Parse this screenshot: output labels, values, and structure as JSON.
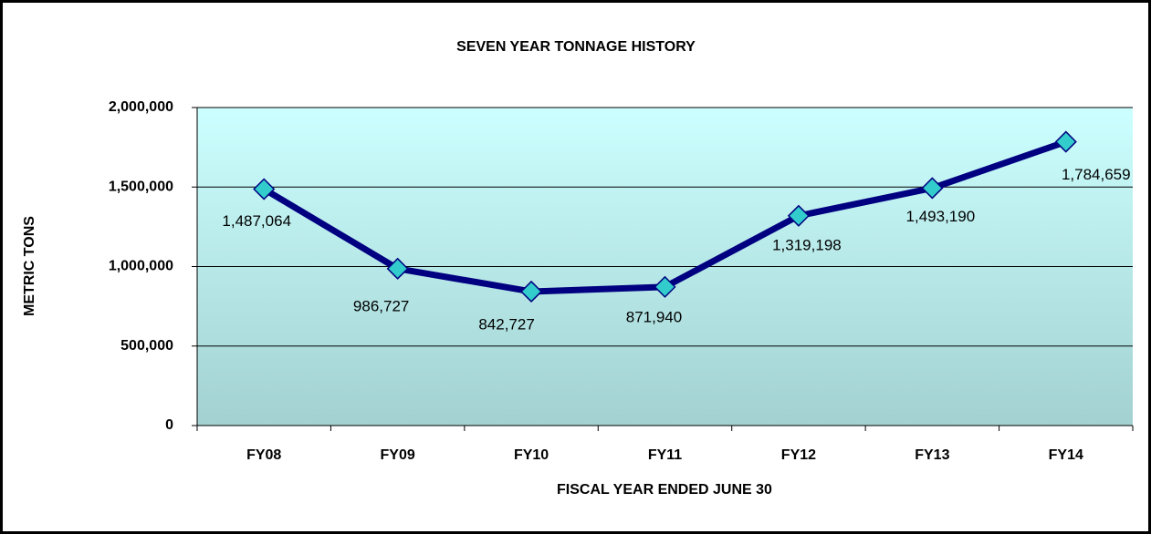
{
  "chart_data": {
    "type": "line",
    "title": "SEVEN YEAR TONNAGE HISTORY",
    "x_label": "FISCAL YEAR ENDED JUNE 30",
    "y_label": "METRIC TONS",
    "categories": [
      "FY08",
      "FY09",
      "FY10",
      "FY11",
      "FY12",
      "FY13",
      "FY14"
    ],
    "series": [
      {
        "name": "Metric Tons",
        "color": "#000080",
        "marker_color": "#33cccc",
        "values": [
          1487064,
          986727,
          842727,
          871940,
          1319198,
          1493190,
          1784659
        ],
        "value_labels": [
          "1,487,064",
          "986,727",
          "842,727",
          "871,940",
          "1,319,198",
          "1,493,190",
          "1,784,659"
        ]
      }
    ],
    "ylim": [
      0,
      2000000
    ],
    "yticks": [
      0,
      {
        "value": 500000,
        "label": "500,000"
      },
      {
        "value": 1000000,
        "label": "1,000,000"
      },
      {
        "value": 1500000,
        "label": "1,500,000"
      },
      {
        "value": 2000000,
        "label": "2,000,000"
      }
    ],
    "grid": true
  }
}
